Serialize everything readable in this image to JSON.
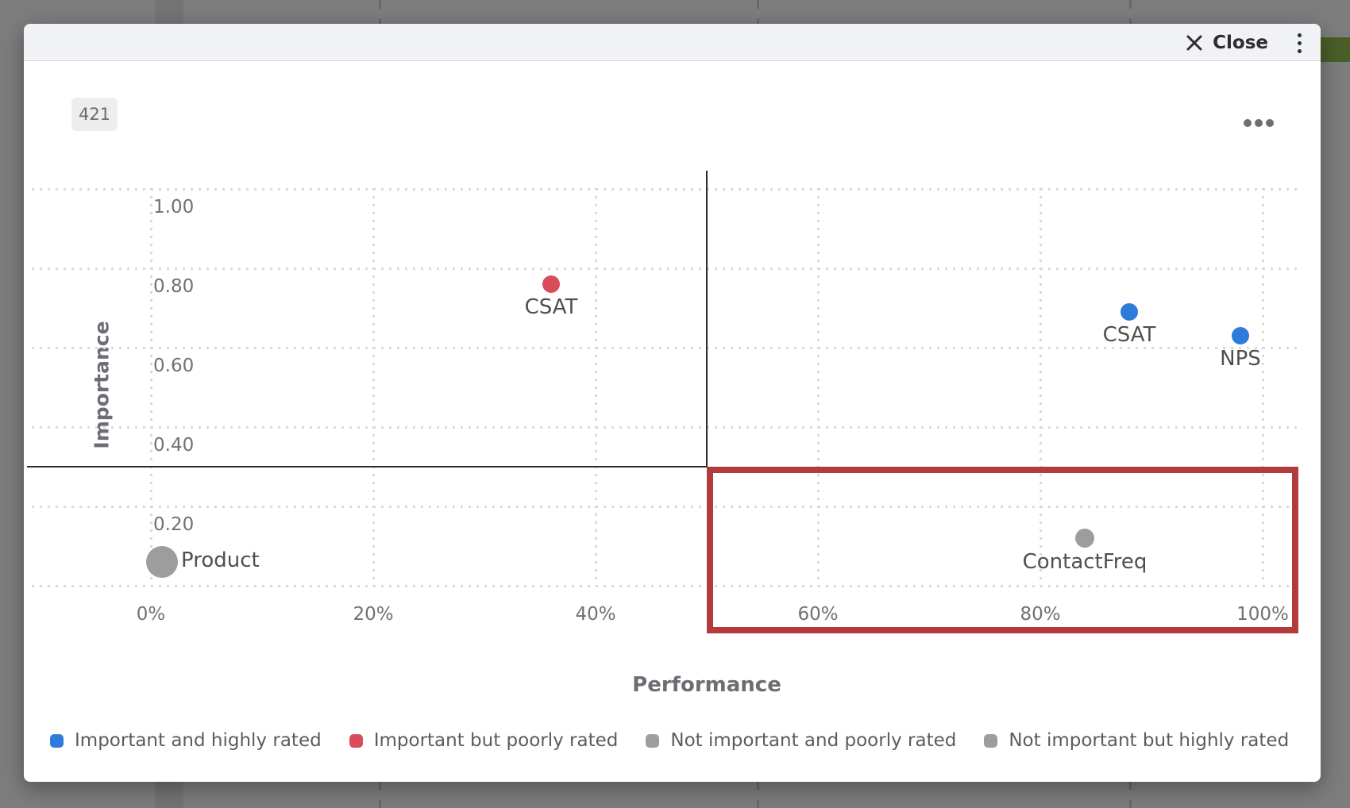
{
  "dialog": {
    "close_label": "Close",
    "count_badge": "421"
  },
  "chart_data": {
    "type": "scatter",
    "title": "",
    "xlabel": "Performance",
    "ylabel": "Importance",
    "x_ticks": [
      "0%",
      "20%",
      "40%",
      "60%",
      "80%",
      "100%"
    ],
    "x_tick_values": [
      0,
      20,
      40,
      60,
      80,
      100
    ],
    "y_ticks": [
      "1.00",
      "0.80",
      "0.60",
      "0.40",
      "0.20"
    ],
    "y_tick_values": [
      1.0,
      0.8,
      0.6,
      0.4,
      0.2
    ],
    "y_gridline_values": [
      1.0,
      0.8,
      0.6,
      0.4,
      0.2,
      0.0
    ],
    "xlim_pct": [
      0,
      100
    ],
    "ylim": [
      0,
      1.0
    ],
    "grid": true,
    "legend_position": "bottom",
    "quadrant": {
      "x_divider_pct": 50,
      "y_divider_importance": 0.3
    },
    "highlight_region": {
      "x_from_pct": 50,
      "x_to_pct": 103.2,
      "y_from_importance": -0.12,
      "y_to_importance": 0.3,
      "color": "#b23b3b"
    },
    "points": [
      {
        "label": "CSAT",
        "performance_pct": 36,
        "importance": 0.76,
        "color": "#d94d5a",
        "radius": 11,
        "label_side": "bottom",
        "category": "Important but poorly rated"
      },
      {
        "label": "CSAT",
        "performance_pct": 88,
        "importance": 0.69,
        "color": "#2f7bd9",
        "radius": 11,
        "label_side": "bottom",
        "category": "Important and highly rated"
      },
      {
        "label": "NPS",
        "performance_pct": 98,
        "importance": 0.63,
        "color": "#2f7bd9",
        "radius": 11,
        "label_side": "bottom",
        "category": "Important and highly rated"
      },
      {
        "label": "ContactFreq",
        "performance_pct": 84,
        "importance": 0.12,
        "color": "#9d9d9d",
        "radius": 12,
        "label_side": "bottom",
        "category": "Not important and poorly rated"
      },
      {
        "label": "Product",
        "performance_pct": 1,
        "importance": 0.06,
        "color": "#9d9d9d",
        "radius": 20,
        "label_side": "right",
        "category": "Not important and poorly rated"
      }
    ],
    "legend": [
      {
        "label": "Important and highly rated",
        "color": "#2f7bd9"
      },
      {
        "label": "Important but poorly rated",
        "color": "#d94d5a"
      },
      {
        "label": "Not important and poorly rated",
        "color": "#9d9d9d"
      },
      {
        "label": "Not important but highly rated",
        "color": "#9d9d9d"
      }
    ]
  }
}
